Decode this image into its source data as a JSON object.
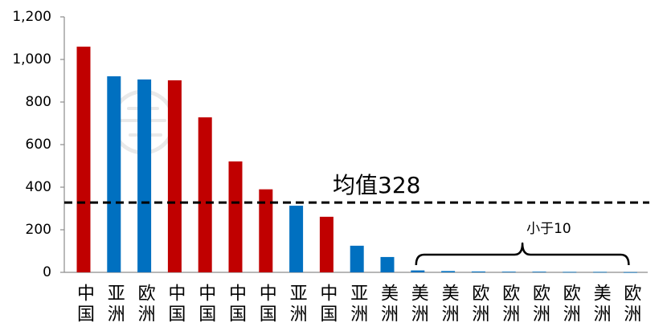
{
  "chart_data": {
    "type": "bar",
    "categories": [
      "中国",
      "亚洲",
      "欧洲",
      "中国",
      "中国",
      "中国",
      "中国",
      "亚洲",
      "中国",
      "亚洲",
      "美洲",
      "美洲",
      "美洲",
      "欧洲",
      "欧洲",
      "欧洲",
      "欧洲",
      "美洲",
      "欧洲"
    ],
    "values": [
      1060,
      921,
      906,
      902,
      728,
      521,
      390,
      313,
      261,
      125,
      72,
      9,
      6,
      4,
      3,
      3,
      2,
      2,
      1
    ],
    "bar_colors": [
      "#C00000",
      "#0070C0",
      "#0070C0",
      "#C00000",
      "#C00000",
      "#C00000",
      "#C00000",
      "#0070C0",
      "#C00000",
      "#0070C0",
      "#0070C0",
      "#0070C0",
      "#0070C0",
      "#0070C0",
      "#0070C0",
      "#0070C0",
      "#0070C0",
      "#0070C0",
      "#0070C0"
    ],
    "ylim": [
      0,
      1200
    ],
    "yticks": [
      0,
      200,
      400,
      600,
      800,
      1000,
      1200
    ],
    "ytick_labels": [
      "0",
      "200",
      "400",
      "600",
      "800",
      "1,000",
      "1,200"
    ],
    "grid": false,
    "legend": "none",
    "mean_line": {
      "value": 328,
      "label": "均值328",
      "color": "#000000"
    },
    "bracket": {
      "from": 11,
      "to": 18,
      "label": "小于10"
    }
  }
}
